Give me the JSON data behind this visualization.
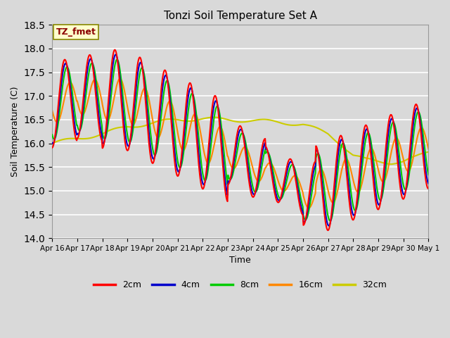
{
  "title": "Tonzi Soil Temperature Set A",
  "xlabel": "Time",
  "ylabel": "Soil Temperature (C)",
  "ylim": [
    14.0,
    18.5
  ],
  "series_colors": {
    "2cm": "#ff0000",
    "4cm": "#0000cc",
    "8cm": "#00cc00",
    "16cm": "#ff8800",
    "32cm": "#cccc00"
  },
  "legend_label": "TZ_fmet",
  "legend_label_color": "#8b0000",
  "legend_box_color": "#ffffcc",
  "x_tick_labels": [
    "Apr 16",
    "Apr 17",
    "Apr 18",
    "Apr 19",
    "Apr 20",
    "Apr 21",
    "Apr 22",
    "Apr 23",
    "Apr 24",
    "Apr 25",
    "Apr 26",
    "Apr 27",
    "Apr 28",
    "Apr 29",
    "Apr 30",
    "May 1"
  ],
  "line_width": 1.5,
  "n_points": 720,
  "figsize": [
    6.4,
    4.8
  ],
  "dpi": 100
}
